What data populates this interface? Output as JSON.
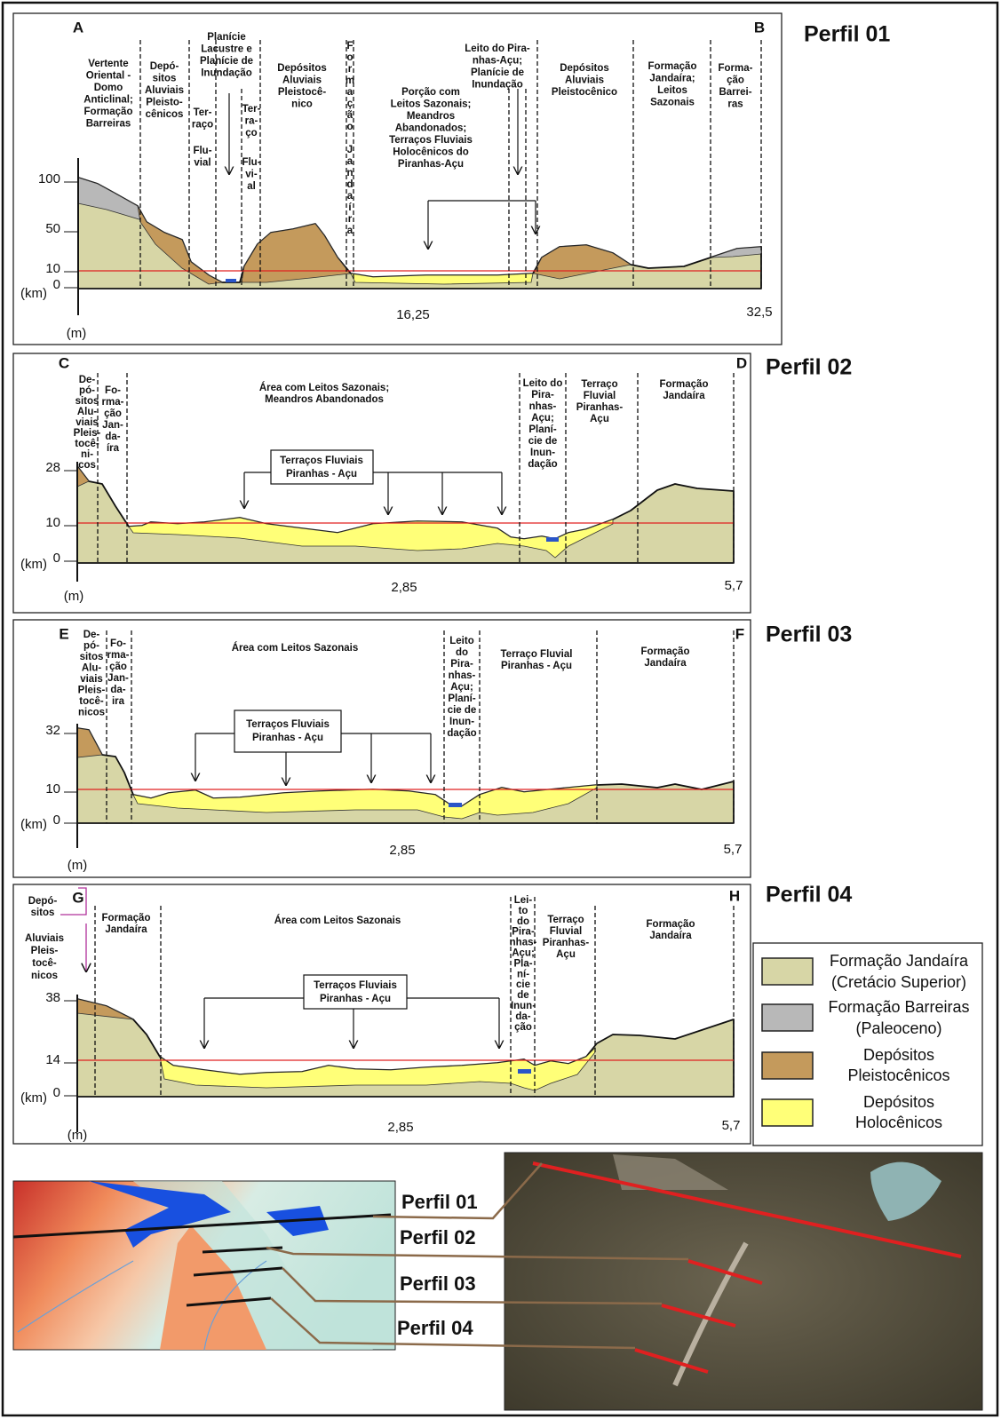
{
  "profiles": [
    {
      "title": "Perfil 01",
      "ends": [
        "A",
        "B"
      ],
      "y_ticks": [
        "100",
        "50",
        "10",
        "0"
      ],
      "y_unit": "(km)",
      "x_unit": "(m)",
      "x_ticks": [
        "16,25",
        "32,5"
      ],
      "units": [
        {
          "lines": [
            "Vertente",
            "Oriental -",
            "Domo",
            "Anticlinal;",
            "Formação",
            "Barreiras"
          ]
        },
        {
          "lines": [
            "Depó-",
            "sitos",
            "Aluviais",
            "Pleisto-",
            "cênicos"
          ]
        },
        {
          "lines": [
            "Planície",
            "Lacustre e",
            "Planície de",
            "Inundação"
          ]
        },
        {
          "lines": [
            "Ter-",
            "raço"
          ]
        },
        {
          "lines": [
            "Flu-",
            "vial"
          ]
        },
        {
          "lines": [
            "Ter-",
            "ra-",
            "ço"
          ]
        },
        {
          "lines": [
            "Flu-",
            "vi-",
            "al"
          ]
        },
        {
          "lines": [
            "Depósitos",
            "Aluviais",
            "Pleistocê-",
            "nico"
          ]
        },
        {
          "lines": [
            "Formação",
            "Jandaíra"
          ]
        },
        {
          "lines": [
            "Porção com",
            "Leitos Sazonais;",
            "Meandros",
            "Abandonados;",
            "Terraços Fluviais",
            "Holocênicos do",
            "Piranhas-Açu"
          ]
        },
        {
          "lines": [
            "Leito do Pira-",
            "nhas-Açu;",
            "Planície de",
            "Inundação"
          ]
        },
        {
          "lines": [
            "Depósitos",
            "Aluviais",
            "Pleistocênico"
          ]
        },
        {
          "lines": [
            "Formação",
            "Jandaíra;",
            "Leitos",
            "Sazonais"
          ]
        },
        {
          "lines": [
            "Forma-",
            "ção",
            "Barrei-",
            "ras"
          ]
        }
      ]
    },
    {
      "title": "Perfil 02",
      "ends": [
        "C",
        "D"
      ],
      "y_ticks": [
        "28",
        "10",
        "0"
      ],
      "y_unit": "(km)",
      "x_unit": "(m)",
      "x_ticks": [
        "2,85",
        "5,7"
      ],
      "units": [
        {
          "lines": [
            "De-",
            "pó-",
            "sitos",
            "Alu-",
            "viais",
            "Pleis-",
            "tocê-",
            "ni-",
            "cos"
          ]
        },
        {
          "lines": [
            "Fo-",
            "rma-",
            "ção",
            "Jan-",
            "da-",
            "íra"
          ]
        },
        {
          "lines": [
            "Área com Leitos Sazonais;",
            "Meandros Abandonados"
          ]
        },
        {
          "lines": [
            "Leito do",
            "Pira-",
            "nhas-",
            "Açu;",
            "Planí-",
            "cie de",
            "Inun-",
            "dação"
          ]
        },
        {
          "lines": [
            "Terraço",
            "Fluvial",
            "Piranhas-",
            "Açu"
          ]
        },
        {
          "lines": [
            "Formação",
            "Jandaíra"
          ]
        },
        {
          "lines": [
            "Terraços Fluviais",
            "Piranhas - Açu"
          ]
        }
      ]
    },
    {
      "title": "Perfil 03",
      "ends": [
        "E",
        "F"
      ],
      "y_ticks": [
        "32",
        "10",
        "0"
      ],
      "y_unit": "(km)",
      "x_unit": "(m)",
      "x_ticks": [
        "2,85",
        "5,7"
      ],
      "units": [
        {
          "lines": [
            "De-",
            "pó-",
            "sitos",
            "Alu-",
            "viais",
            "Pleis-",
            "tocê-",
            "nicos"
          ]
        },
        {
          "lines": [
            "Fo-",
            "rma-",
            "ção",
            "Jan-",
            "da-",
            "ira"
          ]
        },
        {
          "lines": [
            "Área com Leitos Sazonais"
          ]
        },
        {
          "lines": [
            "Leito",
            "do",
            "Pira-",
            "nhas-",
            "Açu;",
            "Planí-",
            "cie de",
            "Inun-",
            "dação"
          ]
        },
        {
          "lines": [
            "Terraço Fluvial",
            "Piranhas - Açu"
          ]
        },
        {
          "lines": [
            "Formação",
            "Jandaíra"
          ]
        },
        {
          "lines": [
            "Terraços Fluviais",
            "Piranhas - Açu"
          ]
        }
      ]
    },
    {
      "title": "Perfil 04",
      "ends": [
        "G",
        "H"
      ],
      "y_ticks": [
        "38",
        "14",
        "0"
      ],
      "y_unit": "(km)",
      "x_unit": "(m)",
      "x_ticks": [
        "2,85",
        "5,7"
      ],
      "units": [
        {
          "lines": [
            "Depó-",
            "sitos"
          ]
        },
        {
          "lines": [
            "Aluviais",
            "Pleis-",
            "tocê-",
            "nicos"
          ]
        },
        {
          "lines": [
            "Formação",
            "Jandaíra"
          ]
        },
        {
          "lines": [
            "Área com Leitos Sazonais"
          ]
        },
        {
          "lines": [
            "Lei-",
            "to",
            "do",
            "Pira-",
            "nhas-",
            "Açu;",
            "Pla-",
            "ní-",
            "cie",
            "de",
            "Inun-",
            "da-",
            "ção"
          ]
        },
        {
          "lines": [
            "Terraço",
            "Fluvial",
            "Piranhas-",
            "Açu"
          ]
        },
        {
          "lines": [
            "Formação",
            "Jandaíra"
          ]
        },
        {
          "lines": [
            "Terraços Fluviais",
            "Piranhas - Açu"
          ]
        }
      ]
    }
  ],
  "legend": [
    {
      "lines": [
        "Formação Jandaíra",
        "(Cretácio Superior)"
      ]
    },
    {
      "lines": [
        "Formação Barreiras",
        "(Paleoceno)"
      ]
    },
    {
      "lines": [
        "Depósitos",
        "Pleistocênicos"
      ]
    },
    {
      "lines": [
        "Depósitos",
        "Holocênicos"
      ]
    }
  ],
  "map_labels": [
    "Perfil 01",
    "Perfil 02",
    "Perfil 03",
    "Perfil 04"
  ]
}
